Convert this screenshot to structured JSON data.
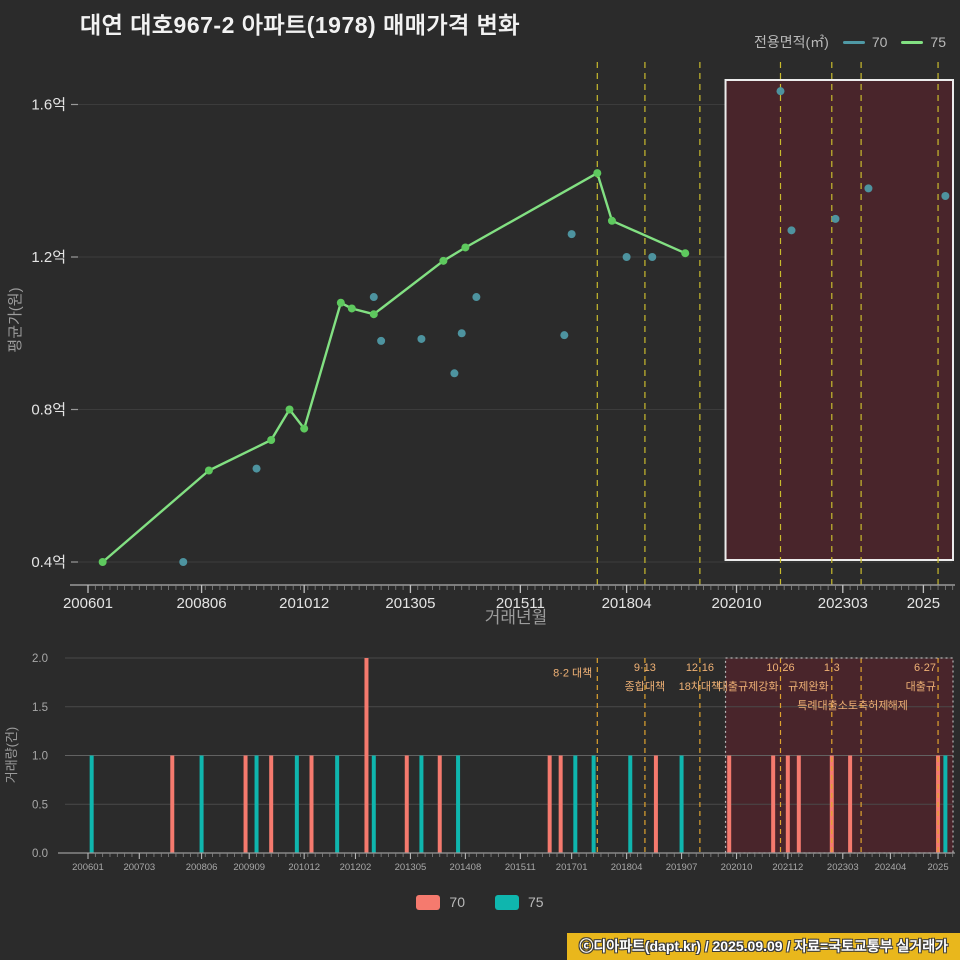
{
  "title": "대연 대호967-2 아파트(1978) 매매가격 변화",
  "colors": {
    "background": "#2b2b2b",
    "accent_70": "#4f99a5",
    "accent_75": "#82e082",
    "dot_75": "#5ec95e",
    "bar_70": "#f57a6e",
    "bar_75": "#0fb6ae",
    "dashed_price": "#c9bb2d",
    "dashed_volume": "#dfa32f",
    "annotation": "#efb175",
    "region_fill": "#49252b",
    "region_border_price": "#ececec",
    "region_border_volume": "#b5b5b5",
    "grid": "#3c3c3c",
    "grid_volume": "#4a4a4a",
    "axis_line": "#9a9a9a",
    "tick_text": "#e4e4e4",
    "tick_text_small": "#a8a8a8",
    "axis_text": "#9c9c9c",
    "footer_bg": "#e9b71c"
  },
  "legend_top": {
    "label": "전용면적(㎡)",
    "items": [
      {
        "name": "70"
      },
      {
        "name": "75"
      }
    ]
  },
  "legend_bottom": {
    "items": [
      {
        "label": "70"
      },
      {
        "label": "75"
      }
    ]
  },
  "footer": {
    "text": "ⓒ디아파트(dapt.kr) / 2025.09.09 / 자료=국토교통부 실거래가"
  },
  "chart_data": [
    {
      "type": "line",
      "title": "대연 대호967-2 아파트(1978) 매매가격 변화",
      "xlabel": "거래년월",
      "ylabel": "평균가(원)",
      "x_unit": "months since 2006-01",
      "xlim": [
        -3,
        237
      ],
      "ylim": [
        0.35,
        1.72
      ],
      "grid": true,
      "yticks": [
        {
          "v": 0.4,
          "label": "0.4억"
        },
        {
          "v": 0.8,
          "label": "0.8억"
        },
        {
          "v": 1.2,
          "label": "1.2억"
        },
        {
          "v": 1.6,
          "label": "1.6억"
        }
      ],
      "xticks": [
        {
          "m": 0,
          "label": "200601"
        },
        {
          "m": 31,
          "label": "200806"
        },
        {
          "m": 59,
          "label": "201012"
        },
        {
          "m": 88,
          "label": "201305"
        },
        {
          "m": 118,
          "label": "201511"
        },
        {
          "m": 147,
          "label": "201804"
        },
        {
          "m": 177,
          "label": "202010"
        },
        {
          "m": 206,
          "label": "202303"
        },
        {
          "m": 228,
          "label": "2025"
        }
      ],
      "series": [
        {
          "name": "75",
          "type": "line",
          "color_key": "accent_75",
          "points": [
            [
              4,
              0.4
            ],
            [
              33,
              0.64
            ],
            [
              50,
              0.72
            ],
            [
              55,
              0.8
            ],
            [
              59,
              0.75
            ],
            [
              69,
              1.08
            ],
            [
              72,
              1.065
            ],
            [
              78,
              1.05
            ],
            [
              97,
              1.19
            ],
            [
              103,
              1.225
            ],
            [
              139,
              1.42
            ],
            [
              143,
              1.295
            ],
            [
              163,
              1.21
            ]
          ]
        },
        {
          "name": "70",
          "type": "scatter",
          "color_key": "accent_70",
          "points": [
            [
              26,
              0.4
            ],
            [
              46,
              0.645
            ],
            [
              78,
              1.095
            ],
            [
              80,
              0.98
            ],
            [
              91,
              0.985
            ],
            [
              100,
              0.895
            ],
            [
              102,
              1.0
            ],
            [
              106,
              1.095
            ],
            [
              130,
              0.995
            ],
            [
              132,
              1.26
            ],
            [
              147,
              1.2
            ],
            [
              154,
              1.2
            ],
            [
              189,
              1.635
            ],
            [
              192,
              1.27
            ],
            [
              204,
              1.3
            ],
            [
              213,
              1.38
            ],
            [
              234,
              1.36
            ]
          ]
        }
      ],
      "policy_lines_m": [
        139,
        152,
        167,
        189,
        203,
        211,
        232
      ],
      "highlight_region_m": [
        174,
        237
      ],
      "legend_position": "top-right"
    },
    {
      "type": "bar",
      "xlabel": "",
      "ylabel": "거래량(건)",
      "ylim": [
        0,
        2
      ],
      "grid": true,
      "yticks": [
        {
          "v": 0.0,
          "label": "0.0"
        },
        {
          "v": 0.5,
          "label": "0.5"
        },
        {
          "v": 1.0,
          "label": "1.0"
        },
        {
          "v": 1.5,
          "label": "1.5"
        },
        {
          "v": 2.0,
          "label": "2.0"
        }
      ],
      "xticks": [
        {
          "m": 0,
          "label": "200601"
        },
        {
          "m": 14,
          "label": "200703"
        },
        {
          "m": 31,
          "label": "200806"
        },
        {
          "m": 44,
          "label": "200909"
        },
        {
          "m": 59,
          "label": "201012"
        },
        {
          "m": 73,
          "label": "201202"
        },
        {
          "m": 88,
          "label": "201305"
        },
        {
          "m": 103,
          "label": "201408"
        },
        {
          "m": 118,
          "label": "201511"
        },
        {
          "m": 132,
          "label": "201701"
        },
        {
          "m": 147,
          "label": "201804"
        },
        {
          "m": 162,
          "label": "201907"
        },
        {
          "m": 177,
          "label": "202010"
        },
        {
          "m": 191,
          "label": "202112"
        },
        {
          "m": 206,
          "label": "202303"
        },
        {
          "m": 219,
          "label": "202404"
        },
        {
          "m": 232,
          "label": "2025"
        }
      ],
      "series": [
        {
          "name": "70",
          "color_key": "bar_70",
          "bars": [
            [
              23,
              1
            ],
            [
              43,
              1
            ],
            [
              50,
              1
            ],
            [
              61,
              1
            ],
            [
              76,
              2
            ],
            [
              87,
              1
            ],
            [
              96,
              1
            ],
            [
              126,
              1
            ],
            [
              129,
              1
            ],
            [
              155,
              1
            ],
            [
              175,
              1
            ],
            [
              187,
              1
            ],
            [
              191,
              1
            ],
            [
              194,
              1
            ],
            [
              203,
              1
            ],
            [
              208,
              1
            ],
            [
              232,
              1
            ]
          ]
        },
        {
          "name": "75",
          "color_key": "bar_75",
          "bars": [
            [
              1,
              1
            ],
            [
              31,
              1
            ],
            [
              46,
              1
            ],
            [
              57,
              1
            ],
            [
              68,
              1
            ],
            [
              78,
              1
            ],
            [
              91,
              1
            ],
            [
              101,
              1
            ],
            [
              133,
              1
            ],
            [
              138,
              1
            ],
            [
              148,
              1
            ],
            [
              162,
              1
            ],
            [
              234,
              1
            ]
          ]
        }
      ],
      "policy_lines_m": [
        139,
        152,
        167,
        189,
        203,
        211,
        232
      ],
      "highlight_region_m": [
        174,
        237
      ],
      "annotations": [
        {
          "text": "8·2 대책",
          "m": 139,
          "row": 1.3,
          "anchor": "end",
          "dx": -5
        },
        {
          "text": "9·13",
          "m": 152,
          "row": 1,
          "anchor": "middle",
          "dx": 0
        },
        {
          "text": "종합대책",
          "m": 152,
          "row": 2,
          "anchor": "middle",
          "dx": 0
        },
        {
          "text": "12·16",
          "m": 167,
          "row": 1,
          "anchor": "middle",
          "dx": 0
        },
        {
          "text": "18차대책",
          "m": 167,
          "row": 2,
          "anchor": "middle",
          "dx": 0
        },
        {
          "text": "10·26",
          "m": 189,
          "row": 1,
          "anchor": "middle",
          "dx": 0
        },
        {
          "text": "대출규제강화",
          "m": 189,
          "row": 2,
          "anchor": "end",
          "dx": -2
        },
        {
          "text": "규제완화",
          "m": 190,
          "row": 2,
          "anchor": "start",
          "dx": 4
        },
        {
          "text": "1·3",
          "m": 203,
          "row": 1,
          "anchor": "middle",
          "dx": 0
        },
        {
          "text": "특례대출소토축허제",
          "m": 206,
          "row": 3,
          "anchor": "middle",
          "dx": 0
        },
        {
          "text": "해제",
          "m": 221,
          "row": 3,
          "anchor": "middle",
          "dx": 0
        },
        {
          "text": "6·27",
          "m": 232,
          "row": 1,
          "anchor": "end",
          "dx": -2
        },
        {
          "text": "대출규",
          "m": 232,
          "row": 2,
          "anchor": "end",
          "dx": -2
        }
      ]
    }
  ]
}
